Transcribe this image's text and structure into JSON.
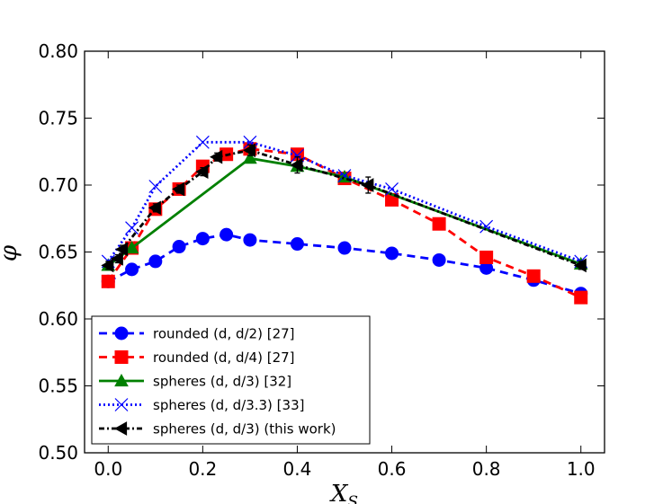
{
  "chart_data": {
    "type": "line",
    "xlabel": "X_S",
    "ylabel": "φ",
    "xlim": [
      -0.05,
      1.05
    ],
    "ylim": [
      0.5,
      0.8
    ],
    "xticks": [
      "0.0",
      "0.2",
      "0.4",
      "0.6",
      "0.8",
      "1.0"
    ],
    "yticks": [
      "0.50",
      "0.55",
      "0.60",
      "0.65",
      "0.70",
      "0.75",
      "0.80"
    ],
    "legend_position": "bottom-left",
    "series": [
      {
        "name": "rounded (d, d/2) [27]",
        "color": "#0000ff",
        "marker": "circle",
        "linestyle": "dashed",
        "x": [
          0.0,
          0.05,
          0.1,
          0.15,
          0.2,
          0.25,
          0.3,
          0.4,
          0.5,
          0.6,
          0.7,
          0.8,
          0.9,
          1.0
        ],
        "y": [
          0.628,
          0.637,
          0.643,
          0.654,
          0.66,
          0.663,
          0.659,
          0.656,
          0.653,
          0.649,
          0.644,
          0.638,
          0.629,
          0.619
        ]
      },
      {
        "name": "rounded (d, d/4) [27]",
        "color": "#ff0000",
        "marker": "square",
        "linestyle": "dashed",
        "x": [
          0.0,
          0.05,
          0.1,
          0.15,
          0.2,
          0.25,
          0.3,
          0.4,
          0.5,
          0.6,
          0.7,
          0.8,
          0.9,
          1.0
        ],
        "y": [
          0.628,
          0.653,
          0.682,
          0.697,
          0.714,
          0.723,
          0.727,
          0.723,
          0.705,
          0.689,
          0.671,
          0.646,
          0.632,
          0.616
        ]
      },
      {
        "name": "spheres (d, d/3) [32]",
        "color": "#008000",
        "marker": "triangle-up",
        "linestyle": "solid",
        "x": [
          0.0,
          0.05,
          0.3,
          0.4,
          0.5,
          1.0
        ],
        "y": [
          0.64,
          0.653,
          0.72,
          0.714,
          0.706,
          0.641
        ]
      },
      {
        "name": "spheres (d, d/3.3) [33]",
        "color": "#0000ff",
        "marker": "x",
        "linestyle": "dotted",
        "x": [
          0.0,
          0.05,
          0.1,
          0.2,
          0.3,
          0.4,
          0.5,
          0.6,
          0.8,
          1.0
        ],
        "y": [
          0.643,
          0.668,
          0.699,
          0.732,
          0.732,
          0.722,
          0.707,
          0.697,
          0.669,
          0.643
        ]
      },
      {
        "name": "spheres (d, d/3) (this work)",
        "color": "#000000",
        "marker": "triangle-left",
        "linestyle": "dashdot",
        "x": [
          0.0,
          0.02,
          0.03,
          0.1,
          0.15,
          0.2,
          0.23,
          0.3,
          0.4,
          0.55,
          1.0
        ],
        "y": [
          0.64,
          0.645,
          0.652,
          0.683,
          0.697,
          0.71,
          0.721,
          0.726,
          0.715,
          0.7,
          0.64
        ],
        "yerr": [
          0.003,
          0.003,
          0.003,
          0.003,
          0.003,
          0.003,
          0.003,
          0.004,
          0.006,
          0.006,
          0.003
        ]
      }
    ]
  }
}
